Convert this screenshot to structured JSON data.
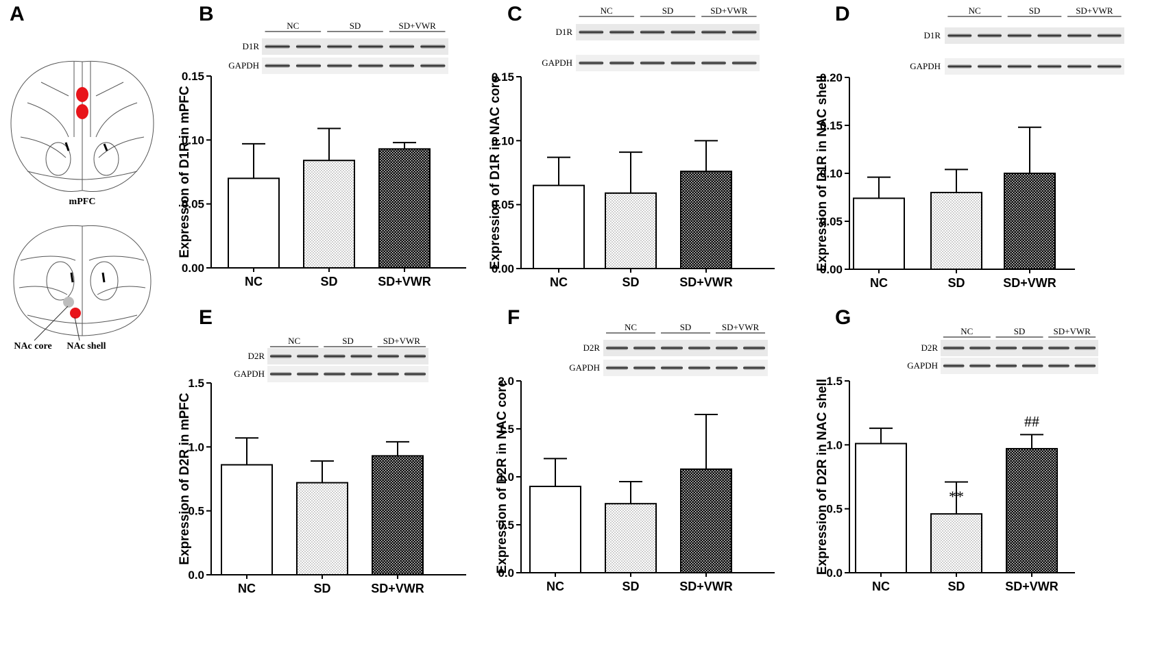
{
  "panel_a": {
    "letter": "A",
    "mpfc_label": "mPFC",
    "nac_core_label": "NAc core",
    "nac_shell_label": "NAc shell"
  },
  "blot_groups": [
    "NC",
    "SD",
    "SD+VWR"
  ],
  "blot_reference": "GAPDH",
  "colors": {
    "region_marker": "#e8141a",
    "core_marker": "#bdbdbd"
  },
  "chart_data": [
    {
      "panel": "B",
      "type": "bar",
      "protein": "D1R",
      "ylabel": "Expression of D1R in mPFC",
      "categories": [
        "NC",
        "SD",
        "SD+VWR"
      ],
      "values": [
        0.07,
        0.084,
        0.093
      ],
      "errors": [
        0.027,
        0.025,
        0.005
      ],
      "ylim": [
        0,
        0.15
      ],
      "yticks": [
        "0.00",
        "0.05",
        "0.10",
        "0.15"
      ],
      "annotations": [
        "",
        "",
        ""
      ]
    },
    {
      "panel": "C",
      "type": "bar",
      "protein": "D1R",
      "ylabel": "Expression of D1R in NAC core",
      "categories": [
        "NC",
        "SD",
        "SD+VWR"
      ],
      "values": [
        0.065,
        0.059,
        0.076
      ],
      "errors": [
        0.022,
        0.032,
        0.024
      ],
      "ylim": [
        0,
        0.15
      ],
      "yticks": [
        "0.00",
        "0.05",
        "0.10",
        "0.15"
      ],
      "annotations": [
        "",
        "",
        ""
      ]
    },
    {
      "panel": "D",
      "type": "bar",
      "protein": "D1R",
      "ylabel": "Expression of D1R in NAC shell",
      "categories": [
        "NC",
        "SD",
        "SD+VWR"
      ],
      "values": [
        0.074,
        0.08,
        0.1
      ],
      "errors": [
        0.022,
        0.024,
        0.048
      ],
      "ylim": [
        0,
        0.2
      ],
      "yticks": [
        "0.00",
        "0.05",
        "0.10",
        "0.15",
        "0.20"
      ],
      "annotations": [
        "",
        "",
        ""
      ]
    },
    {
      "panel": "E",
      "type": "bar",
      "protein": "D2R",
      "ylabel": "Expression of D2R in mPFC",
      "categories": [
        "NC",
        "SD",
        "SD+VWR"
      ],
      "values": [
        0.86,
        0.72,
        0.93
      ],
      "errors": [
        0.21,
        0.17,
        0.11
      ],
      "ylim": [
        0,
        1.5
      ],
      "yticks": [
        "0.0",
        "0.5",
        "1.0",
        "1.5"
      ],
      "annotations": [
        "",
        "",
        ""
      ]
    },
    {
      "panel": "F",
      "type": "bar",
      "protein": "D2R",
      "ylabel": "Expression of D2R in NAC core",
      "categories": [
        "NC",
        "SD",
        "SD+VWR"
      ],
      "values": [
        0.9,
        0.72,
        1.08
      ],
      "errors": [
        0.29,
        0.23,
        0.57
      ],
      "ylim": [
        0,
        2.0
      ],
      "yticks": [
        "0.0",
        "0.5",
        "1.0",
        "1.5",
        "2.0"
      ],
      "annotations": [
        "",
        "",
        ""
      ]
    },
    {
      "panel": "G",
      "type": "bar",
      "protein": "D2R",
      "ylabel": "Expression of D2R in NAC shell",
      "categories": [
        "NC",
        "SD",
        "SD+VWR"
      ],
      "values": [
        1.01,
        0.46,
        0.97
      ],
      "errors": [
        0.12,
        0.25,
        0.11
      ],
      "ylim": [
        0,
        1.5
      ],
      "yticks": [
        "0.0",
        "0.5",
        "1.0",
        "1.5"
      ],
      "annotations": [
        "",
        "**",
        "##"
      ]
    }
  ]
}
